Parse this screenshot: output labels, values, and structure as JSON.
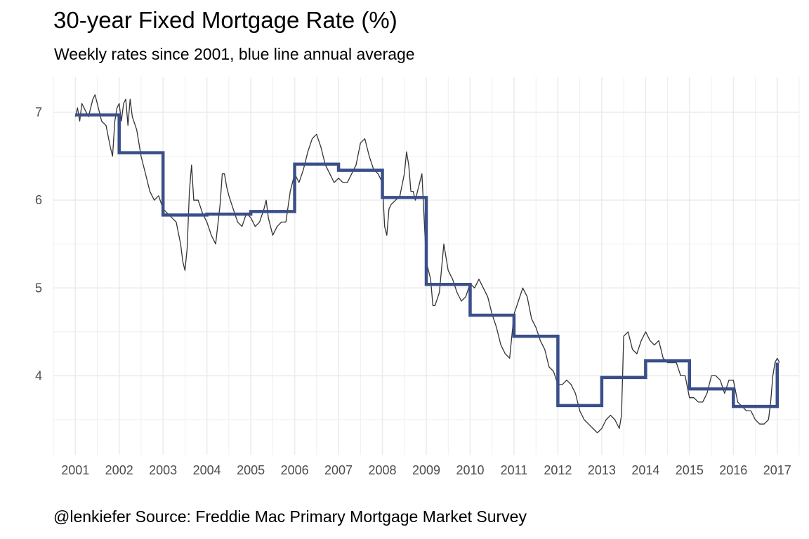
{
  "title": "30-year Fixed Mortgage Rate (%)",
  "subtitle": "Weekly rates since 2001, blue line annual average",
  "caption": "@lenkiefer Source: Freddie Mac Primary Mortgage Market Survey",
  "chart_data": {
    "type": "line",
    "title": "30-year Fixed Mortgage Rate (%)",
    "subtitle": "Weekly rates since 2001, blue line annual average",
    "xlabel": "",
    "ylabel": "",
    "xlim": [
      2000.5,
      2017.5
    ],
    "ylim": [
      3.1,
      7.4
    ],
    "x_ticks": [
      2001,
      2002,
      2003,
      2004,
      2005,
      2006,
      2007,
      2008,
      2009,
      2010,
      2011,
      2012,
      2013,
      2014,
      2015,
      2016,
      2017
    ],
    "y_ticks": [
      4,
      5,
      6,
      7
    ],
    "grid": true,
    "colors": {
      "weekly": "#333333",
      "annual": "#3a4f8a",
      "grid": "#ebebeb"
    },
    "series": [
      {
        "role": "weekly",
        "x": [
          2001.0,
          2001.05,
          2001.1,
          2001.15,
          2001.2,
          2001.3,
          2001.4,
          2001.45,
          2001.5,
          2001.55,
          2001.6,
          2001.7,
          2001.8,
          2001.85,
          2001.9,
          2001.95,
          2002.0,
          2002.05,
          2002.1,
          2002.15,
          2002.2,
          2002.25,
          2002.3,
          2002.4,
          2002.5,
          2002.6,
          2002.65,
          2002.7,
          2002.8,
          2002.9,
          2003.0,
          2003.1,
          2003.2,
          2003.3,
          2003.4,
          2003.45,
          2003.5,
          2003.55,
          2003.6,
          2003.65,
          2003.7,
          2003.8,
          2003.9,
          2004.0,
          2004.1,
          2004.2,
          2004.3,
          2004.35,
          2004.4,
          2004.45,
          2004.5,
          2004.6,
          2004.7,
          2004.8,
          2004.9,
          2005.0,
          2005.1,
          2005.2,
          2005.3,
          2005.35,
          2005.4,
          2005.45,
          2005.5,
          2005.6,
          2005.7,
          2005.8,
          2005.9,
          2006.0,
          2006.1,
          2006.2,
          2006.3,
          2006.4,
          2006.5,
          2006.6,
          2006.7,
          2006.8,
          2006.9,
          2007.0,
          2007.1,
          2007.2,
          2007.3,
          2007.4,
          2007.5,
          2007.6,
          2007.7,
          2007.8,
          2007.9,
          2008.0,
          2008.05,
          2008.1,
          2008.15,
          2008.2,
          2008.3,
          2008.4,
          2008.5,
          2008.55,
          2008.6,
          2008.65,
          2008.7,
          2008.75,
          2008.8,
          2008.9,
          2008.95,
          2009.0,
          2009.05,
          2009.1,
          2009.15,
          2009.2,
          2009.3,
          2009.4,
          2009.45,
          2009.5,
          2009.6,
          2009.7,
          2009.8,
          2009.9,
          2010.0,
          2010.1,
          2010.2,
          2010.3,
          2010.4,
          2010.5,
          2010.6,
          2010.7,
          2010.8,
          2010.9,
          2011.0,
          2011.1,
          2011.2,
          2011.3,
          2011.4,
          2011.5,
          2011.6,
          2011.7,
          2011.8,
          2011.9,
          2012.0,
          2012.1,
          2012.2,
          2012.3,
          2012.4,
          2012.5,
          2012.6,
          2012.7,
          2012.8,
          2012.9,
          2013.0,
          2013.1,
          2013.2,
          2013.3,
          2013.4,
          2013.45,
          2013.5,
          2013.6,
          2013.7,
          2013.8,
          2013.9,
          2014.0,
          2014.1,
          2014.2,
          2014.3,
          2014.4,
          2014.5,
          2014.6,
          2014.7,
          2014.8,
          2014.9,
          2015.0,
          2015.1,
          2015.2,
          2015.3,
          2015.4,
          2015.5,
          2015.6,
          2015.7,
          2015.8,
          2015.9,
          2016.0,
          2016.1,
          2016.2,
          2016.3,
          2016.4,
          2016.5,
          2016.6,
          2016.7,
          2016.8,
          2016.85,
          2016.9,
          2016.95,
          2017.0,
          2017.05
        ],
        "y": [
          6.95,
          7.05,
          6.9,
          7.1,
          7.05,
          6.95,
          7.15,
          7.2,
          7.1,
          7.0,
          6.9,
          6.85,
          6.6,
          6.5,
          6.9,
          7.05,
          7.1,
          6.9,
          7.1,
          7.15,
          6.85,
          7.15,
          6.95,
          6.8,
          6.5,
          6.3,
          6.2,
          6.1,
          6.0,
          6.05,
          5.9,
          5.85,
          5.8,
          5.75,
          5.5,
          5.3,
          5.2,
          5.45,
          6.1,
          6.4,
          6.0,
          6.0,
          5.85,
          5.75,
          5.6,
          5.5,
          5.95,
          6.3,
          6.3,
          6.15,
          6.05,
          5.9,
          5.75,
          5.7,
          5.85,
          5.8,
          5.7,
          5.75,
          5.9,
          6.0,
          5.8,
          5.7,
          5.6,
          5.7,
          5.75,
          5.75,
          6.1,
          6.3,
          6.2,
          6.35,
          6.55,
          6.7,
          6.75,
          6.6,
          6.4,
          6.3,
          6.2,
          6.25,
          6.2,
          6.2,
          6.3,
          6.4,
          6.65,
          6.7,
          6.5,
          6.35,
          6.3,
          6.2,
          5.7,
          5.6,
          5.9,
          5.95,
          6.0,
          6.05,
          6.3,
          6.55,
          6.4,
          6.1,
          6.1,
          6.0,
          6.1,
          6.3,
          5.8,
          5.3,
          5.2,
          5.1,
          4.8,
          4.8,
          4.95,
          5.5,
          5.35,
          5.2,
          5.1,
          4.95,
          4.85,
          4.9,
          5.05,
          5.0,
          5.1,
          5.0,
          4.9,
          4.7,
          4.55,
          4.35,
          4.25,
          4.2,
          4.7,
          4.85,
          5.0,
          4.9,
          4.65,
          4.55,
          4.4,
          4.3,
          4.1,
          4.05,
          3.9,
          3.9,
          3.95,
          3.9,
          3.8,
          3.6,
          3.5,
          3.45,
          3.4,
          3.35,
          3.4,
          3.5,
          3.55,
          3.5,
          3.4,
          3.55,
          4.45,
          4.5,
          4.3,
          4.25,
          4.4,
          4.5,
          4.4,
          4.35,
          4.4,
          4.2,
          4.15,
          4.15,
          4.15,
          4.0,
          4.0,
          3.75,
          3.75,
          3.7,
          3.7,
          3.8,
          4.0,
          4.0,
          3.95,
          3.8,
          3.95,
          3.95,
          3.7,
          3.65,
          3.6,
          3.6,
          3.5,
          3.45,
          3.45,
          3.5,
          3.7,
          4.0,
          4.15,
          4.2,
          4.15
        ]
      },
      {
        "role": "annual",
        "step_years": [
          2001,
          2002,
          2003,
          2004,
          2005,
          2006,
          2007,
          2008,
          2009,
          2010,
          2011,
          2012,
          2013,
          2014,
          2015,
          2016,
          2017
        ],
        "values": [
          6.97,
          6.54,
          5.83,
          5.84,
          5.87,
          6.41,
          6.34,
          6.03,
          5.04,
          4.69,
          4.45,
          3.66,
          3.98,
          4.17,
          3.85,
          3.65,
          4.15
        ]
      }
    ]
  }
}
